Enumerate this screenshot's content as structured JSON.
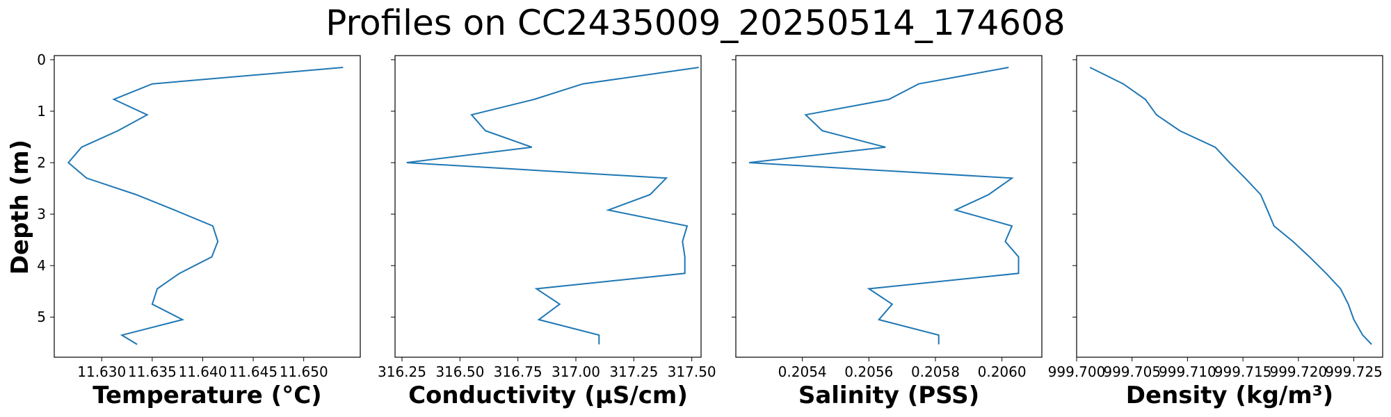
{
  "chart_data": {
    "type": "line",
    "title": "Profiles on CC2435009_20250514_174608",
    "ylabel": "Depth (m)",
    "y_inverted": true,
    "ylim": [
      5.78,
      -0.08
    ],
    "y_ticks": [
      0,
      1,
      2,
      3,
      4,
      5
    ],
    "grid": false,
    "line_color": "#1f77b4",
    "depth": [
      0.15,
      0.47,
      0.77,
      1.07,
      1.38,
      1.7,
      2.0,
      2.3,
      2.62,
      2.92,
      3.23,
      3.53,
      3.83,
      4.15,
      4.45,
      4.75,
      5.05,
      5.35,
      5.53
    ],
    "panels": [
      {
        "xlabel": "Temperature (°C)",
        "xlim": [
          11.6253,
          11.6556
        ],
        "x_ticks": [
          11.63,
          11.635,
          11.64,
          11.645,
          11.65
        ],
        "x_tick_labels": [
          "11.630",
          "11.635",
          "11.640",
          "11.645",
          "11.650"
        ],
        "values": [
          11.6539,
          11.635,
          11.6312,
          11.6345,
          11.6316,
          11.628,
          11.6267,
          11.6285,
          11.6334,
          11.6372,
          11.641,
          11.6415,
          11.6409,
          11.6377,
          11.6355,
          11.635,
          11.638,
          11.632,
          11.6335
        ]
      },
      {
        "xlabel": "Conductivity (µS/cm)",
        "xlim": [
          316.22,
          317.54
        ],
        "x_ticks": [
          316.25,
          316.5,
          316.75,
          317.0,
          317.25,
          317.5
        ],
        "x_tick_labels": [
          "316.25",
          "316.50",
          "316.75",
          "317.00",
          "317.25",
          "317.50"
        ],
        "values": [
          317.53,
          317.03,
          316.82,
          316.55,
          316.61,
          316.81,
          316.27,
          317.39,
          317.32,
          317.14,
          317.48,
          317.46,
          317.47,
          317.47,
          316.83,
          316.93,
          316.84,
          317.1,
          317.1
        ]
      },
      {
        "xlabel": "Salinity (PSS)",
        "xlim": [
          0.2052,
          0.20612
        ],
        "x_ticks": [
          0.2054,
          0.2056,
          0.2058,
          0.206
        ],
        "x_tick_labels": [
          "0.2054",
          "0.2056",
          "0.2058",
          "0.2060"
        ],
        "values": [
          0.20602,
          0.20575,
          0.20566,
          0.20541,
          0.20546,
          0.20565,
          0.20524,
          0.20603,
          0.20596,
          0.20586,
          0.20603,
          0.20601,
          0.20605,
          0.20605,
          0.2056,
          0.20567,
          0.20563,
          0.20581,
          0.20581
        ]
      },
      {
        "xlabel": "Density (kg/m³)",
        "xlim": [
          999.7,
          999.7276
        ],
        "x_ticks": [
          999.7,
          999.705,
          999.71,
          999.715,
          999.72,
          999.725
        ],
        "x_tick_labels": [
          "999.700",
          "999.705",
          "999.710",
          "999.715",
          "999.720",
          "999.725"
        ],
        "values": [
          999.7012,
          999.7042,
          999.7062,
          999.7072,
          999.7093,
          999.7125,
          999.7138,
          999.7152,
          999.7166,
          999.7172,
          999.7178,
          999.7195,
          999.721,
          999.7225,
          999.7238,
          999.7245,
          999.725,
          999.7258,
          999.7266
        ]
      }
    ]
  }
}
